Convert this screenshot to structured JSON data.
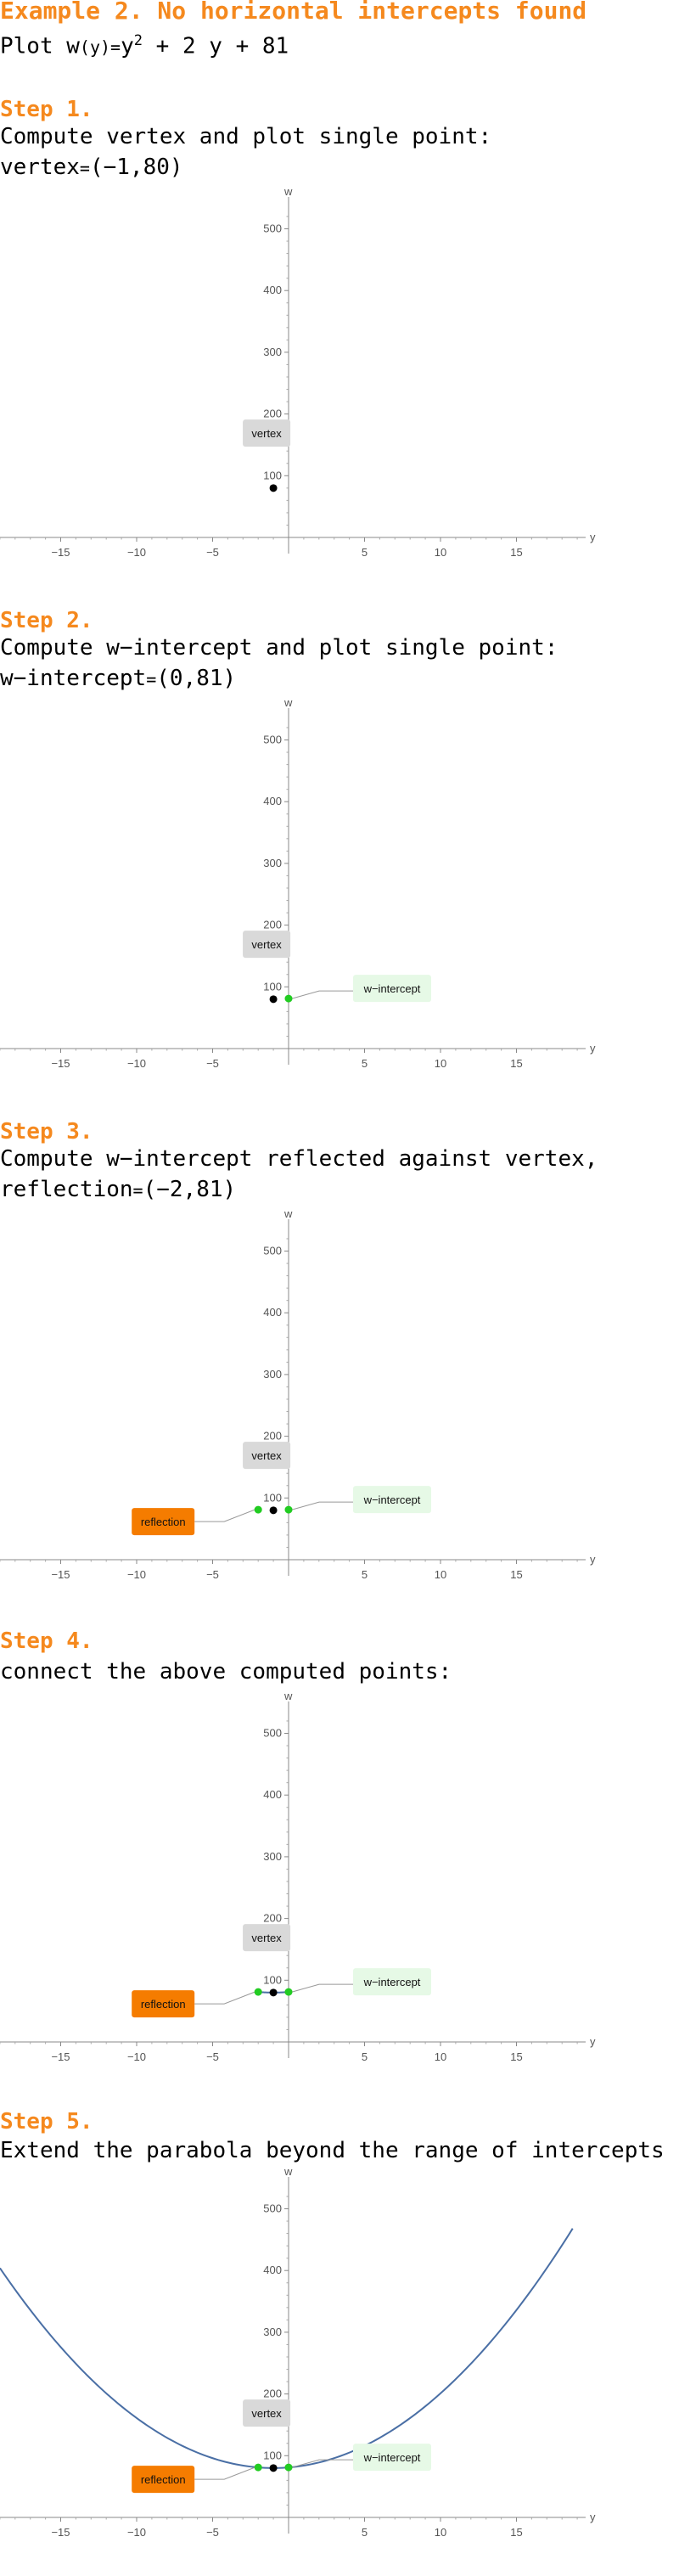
{
  "header": {
    "title": "Example 2. No horizontal intercepts found",
    "plot_prefix": "Plot w",
    "plot_func": "(y)",
    "plot_eq": "=",
    "plot_expr_a": "y",
    "plot_expr_exp": "2",
    "plot_expr_b": " + 2 y + 81"
  },
  "steps": [
    {
      "title": "Step 1.",
      "line1": "Compute vertex and plot single point:",
      "line2_label": "vertex",
      "line2_value": "(−1,80)"
    },
    {
      "title": "Step 2.",
      "line1": "Compute w−intercept and plot single point:",
      "line2_label": "w−intercept",
      "line2_value": "(0,81)"
    },
    {
      "title": "Step 3.",
      "line1": "Compute w−intercept reflected against vertex,",
      "line2_label": "reflection",
      "line2_value": "(−2,81)"
    },
    {
      "title": "Step 4.",
      "line1": "connect the above computed points:"
    },
    {
      "title": "Step 5.",
      "line1": "Extend the parabola beyond the range of intercepts"
    }
  ],
  "colors": {
    "accent": "#f5891e",
    "vertex_point": "#000000",
    "intercept_point": "#22cc22",
    "curve": "#4a6fa5",
    "vertex_label_bg": "#d9d9d9",
    "intercept_label_bg": "#e6f9e6",
    "reflection_label_bg": "#f57c00"
  },
  "chart_data": [
    {
      "type": "scatter",
      "xlabel": "y",
      "ylabel": "w",
      "x_ticks": [
        -15,
        -10,
        -5,
        5,
        10,
        15
      ],
      "y_ticks": [
        100,
        200,
        300,
        400,
        500
      ],
      "xlim": [
        -19,
        19
      ],
      "ylim": [
        -5,
        530
      ],
      "points": [
        {
          "x": -1,
          "y": 80,
          "kind": "vertex"
        }
      ],
      "labels": [
        {
          "text": "vertex",
          "for": "vertex"
        }
      ]
    },
    {
      "type": "scatter",
      "xlabel": "y",
      "ylabel": "w",
      "x_ticks": [
        -15,
        -10,
        -5,
        5,
        10,
        15
      ],
      "y_ticks": [
        100,
        200,
        300,
        400,
        500
      ],
      "xlim": [
        -19,
        19
      ],
      "ylim": [
        -5,
        530
      ],
      "points": [
        {
          "x": -1,
          "y": 80,
          "kind": "vertex"
        },
        {
          "x": 0,
          "y": 81,
          "kind": "intercept"
        }
      ],
      "labels": [
        {
          "text": "vertex",
          "for": "vertex"
        },
        {
          "text": "w−intercept",
          "for": "intercept"
        }
      ]
    },
    {
      "type": "scatter",
      "xlabel": "y",
      "ylabel": "w",
      "x_ticks": [
        -15,
        -10,
        -5,
        5,
        10,
        15
      ],
      "y_ticks": [
        100,
        200,
        300,
        400,
        500
      ],
      "xlim": [
        -19,
        19
      ],
      "ylim": [
        -5,
        530
      ],
      "points": [
        {
          "x": -1,
          "y": 80,
          "kind": "vertex"
        },
        {
          "x": 0,
          "y": 81,
          "kind": "intercept"
        },
        {
          "x": -2,
          "y": 81,
          "kind": "reflection"
        }
      ],
      "labels": [
        {
          "text": "vertex",
          "for": "vertex"
        },
        {
          "text": "w−intercept",
          "for": "intercept"
        },
        {
          "text": "reflection",
          "for": "reflection"
        }
      ]
    },
    {
      "type": "line",
      "xlabel": "y",
      "ylabel": "w",
      "x_ticks": [
        -15,
        -10,
        -5,
        5,
        10,
        15
      ],
      "y_ticks": [
        100,
        200,
        300,
        400,
        500
      ],
      "xlim": [
        -19,
        19
      ],
      "ylim": [
        -5,
        530
      ],
      "points": [
        {
          "x": -1,
          "y": 80,
          "kind": "vertex"
        },
        {
          "x": 0,
          "y": 81,
          "kind": "intercept"
        },
        {
          "x": -2,
          "y": 81,
          "kind": "reflection"
        }
      ],
      "curve_domain": [
        -2,
        0
      ],
      "labels": [
        {
          "text": "vertex",
          "for": "vertex"
        },
        {
          "text": "w−intercept",
          "for": "intercept"
        },
        {
          "text": "reflection",
          "for": "reflection"
        }
      ]
    },
    {
      "type": "line",
      "xlabel": "y",
      "ylabel": "w",
      "x_ticks": [
        -15,
        -10,
        -5,
        5,
        10,
        15
      ],
      "y_ticks": [
        100,
        200,
        300,
        400,
        500
      ],
      "xlim": [
        -19,
        19
      ],
      "ylim": [
        -5,
        530
      ],
      "points": [
        {
          "x": -1,
          "y": 80,
          "kind": "vertex"
        },
        {
          "x": 0,
          "y": 81,
          "kind": "intercept"
        },
        {
          "x": -2,
          "y": 81,
          "kind": "reflection"
        }
      ],
      "curve_domain": [
        -19,
        18.7
      ],
      "labels": [
        {
          "text": "vertex",
          "for": "vertex"
        },
        {
          "text": "w−intercept",
          "for": "intercept"
        },
        {
          "text": "reflection",
          "for": "reflection"
        }
      ]
    }
  ]
}
